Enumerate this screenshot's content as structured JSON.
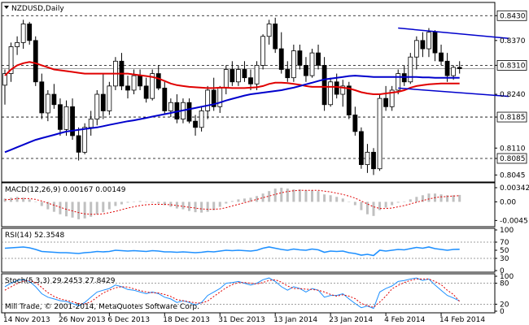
{
  "window": {
    "symbol_title": "NZDUSD,Daily",
    "copyright": "Mill Trade, © 2001-2014, MetaQuotes Software Corp."
  },
  "colors": {
    "background": "#ffffff",
    "frame": "#000000",
    "bull_candle": "#ffffff",
    "bear_candle": "#000000",
    "ma_red": "#e00000",
    "ma_blue": "#0000cc",
    "trendline": "#0000cc",
    "hline": "#000000",
    "last_price_line": "#808080",
    "macd_hist": "#c0c0c0",
    "macd_signal": "#e00000",
    "rsi_line": "#1e90ff",
    "stoch_main": "#1e90ff",
    "stoch_signal": "#e00000"
  },
  "chart_data": [
    {
      "type": "candlestick",
      "title": "NZDUSD,Daily",
      "ylim": [
        0.803,
        0.846
      ],
      "price_tick_labels": [
        "0.8430",
        "0.8370",
        "0.8310",
        "0.8240",
        "0.8185",
        "0.8110",
        "0.8085",
        "0.8045"
      ],
      "horizontal_levels": [
        0.843,
        0.831,
        0.8185,
        0.8085
      ],
      "last_price": 0.8302,
      "x_tick_labels": [
        "14 Nov 2013",
        "26 Nov 2013",
        "6 Dec 2013",
        "18 Dec 2013",
        "31 Dec 2013",
        "13 Jan 2014",
        "23 Jan 2014",
        "4 Feb 2014",
        "14 Feb 2014"
      ],
      "x_tick_bar_index": [
        0,
        9,
        17,
        26,
        35,
        44,
        53,
        62,
        71
      ],
      "candles": [
        [
          0.8262,
          0.83,
          0.8215,
          0.829
        ],
        [
          0.829,
          0.8365,
          0.827,
          0.8355
        ],
        [
          0.8355,
          0.838,
          0.8335,
          0.8365
        ],
        [
          0.8365,
          0.842,
          0.835,
          0.841
        ],
        [
          0.841,
          0.8415,
          0.836,
          0.837
        ],
        [
          0.837,
          0.838,
          0.826,
          0.827
        ],
        [
          0.827,
          0.829,
          0.818,
          0.8195
        ],
        [
          0.8195,
          0.825,
          0.8175,
          0.824
        ],
        [
          0.824,
          0.8265,
          0.8205,
          0.8215
        ],
        [
          0.8215,
          0.823,
          0.814,
          0.8155
        ],
        [
          0.8155,
          0.8225,
          0.814,
          0.821
        ],
        [
          0.821,
          0.823,
          0.813,
          0.814
        ],
        [
          0.814,
          0.816,
          0.808,
          0.81
        ],
        [
          0.81,
          0.817,
          0.8095,
          0.816
        ],
        [
          0.816,
          0.82,
          0.814,
          0.818
        ],
        [
          0.818,
          0.825,
          0.8165,
          0.824
        ],
        [
          0.824,
          0.829,
          0.818,
          0.82
        ],
        [
          0.82,
          0.827,
          0.819,
          0.826
        ],
        [
          0.826,
          0.833,
          0.825,
          0.832
        ],
        [
          0.832,
          0.834,
          0.825,
          0.826
        ],
        [
          0.826,
          0.8285,
          0.823,
          0.825
        ],
        [
          0.825,
          0.83,
          0.824,
          0.8285
        ],
        [
          0.8285,
          0.83,
          0.825,
          0.826
        ],
        [
          0.826,
          0.828,
          0.822,
          0.823
        ],
        [
          0.823,
          0.83,
          0.8225,
          0.829
        ],
        [
          0.829,
          0.831,
          0.825,
          0.8255
        ],
        [
          0.8255,
          0.827,
          0.819,
          0.82
        ],
        [
          0.82,
          0.823,
          0.8185,
          0.822
        ],
        [
          0.822,
          0.824,
          0.817,
          0.818
        ],
        [
          0.818,
          0.823,
          0.817,
          0.822
        ],
        [
          0.822,
          0.823,
          0.817,
          0.8175
        ],
        [
          0.8175,
          0.819,
          0.814,
          0.816
        ],
        [
          0.816,
          0.821,
          0.815,
          0.82
        ],
        [
          0.82,
          0.826,
          0.818,
          0.825
        ],
        [
          0.825,
          0.828,
          0.82,
          0.821
        ],
        [
          0.821,
          0.826,
          0.8195,
          0.8255
        ],
        [
          0.8255,
          0.831,
          0.824,
          0.83
        ],
        [
          0.83,
          0.832,
          0.826,
          0.827
        ],
        [
          0.827,
          0.831,
          0.826,
          0.83
        ],
        [
          0.83,
          0.832,
          0.827,
          0.828
        ],
        [
          0.828,
          0.83,
          0.825,
          0.8265
        ],
        [
          0.8265,
          0.832,
          0.825,
          0.831
        ],
        [
          0.831,
          0.8385,
          0.83,
          0.838
        ],
        [
          0.838,
          0.842,
          0.836,
          0.841
        ],
        [
          0.841,
          0.8425,
          0.834,
          0.835
        ],
        [
          0.835,
          0.839,
          0.829,
          0.83
        ],
        [
          0.83,
          0.832,
          0.827,
          0.828
        ],
        [
          0.828,
          0.836,
          0.827,
          0.8345
        ],
        [
          0.8345,
          0.836,
          0.83,
          0.831
        ],
        [
          0.831,
          0.833,
          0.827,
          0.8285
        ],
        [
          0.8285,
          0.835,
          0.828,
          0.834
        ],
        [
          0.834,
          0.836,
          0.83,
          0.831
        ],
        [
          0.831,
          0.833,
          0.82,
          0.8215
        ],
        [
          0.8215,
          0.828,
          0.821,
          0.827
        ],
        [
          0.827,
          0.829,
          0.823,
          0.824
        ],
        [
          0.824,
          0.8275,
          0.821,
          0.826
        ],
        [
          0.826,
          0.827,
          0.818,
          0.819
        ],
        [
          0.819,
          0.821,
          0.814,
          0.815
        ],
        [
          0.815,
          0.816,
          0.806,
          0.807
        ],
        [
          0.807,
          0.812,
          0.805,
          0.81
        ],
        [
          0.81,
          0.811,
          0.8045,
          0.806
        ],
        [
          0.806,
          0.824,
          0.8055,
          0.823
        ],
        [
          0.823,
          0.826,
          0.82,
          0.821
        ],
        [
          0.821,
          0.826,
          0.82,
          0.825
        ],
        [
          0.825,
          0.83,
          0.824,
          0.829
        ],
        [
          0.829,
          0.831,
          0.826,
          0.827
        ],
        [
          0.827,
          0.834,
          0.8265,
          0.833
        ],
        [
          0.833,
          0.838,
          0.83,
          0.837
        ],
        [
          0.837,
          0.839,
          0.833,
          0.835
        ],
        [
          0.835,
          0.84,
          0.833,
          0.839
        ],
        [
          0.839,
          0.8395,
          0.832,
          0.834
        ],
        [
          0.834,
          0.836,
          0.831,
          0.832
        ],
        [
          0.832,
          0.834,
          0.827,
          0.8285
        ],
        [
          0.8285,
          0.831,
          0.8275,
          0.8305
        ],
        [
          0.8305,
          0.832,
          0.829,
          0.8302
        ]
      ],
      "overlays": [
        {
          "line": "red-ma",
          "values": [
            0.8285,
            0.83,
            0.831,
            0.8315,
            0.8318,
            0.8315,
            0.831,
            0.8305,
            0.83,
            0.8298,
            0.8296,
            0.8294,
            0.8292,
            0.829,
            0.829,
            0.829,
            0.829,
            0.829,
            0.829,
            0.829,
            0.829,
            0.8288,
            0.8286,
            0.8284,
            0.8282,
            0.8278,
            0.8272,
            0.8266,
            0.8262,
            0.826,
            0.8258,
            0.8257,
            0.8256,
            0.8255,
            0.8255,
            0.8256,
            0.8256,
            0.8255,
            0.8255,
            0.8255,
            0.8256,
            0.8257,
            0.826,
            0.8265,
            0.8268,
            0.8268,
            0.8267,
            0.8265,
            0.8263,
            0.826,
            0.8258,
            0.8258,
            0.8258,
            0.8258,
            0.8258,
            0.8256,
            0.8254,
            0.825,
            0.8245,
            0.8242,
            0.824,
            0.824,
            0.8242,
            0.8244,
            0.8246,
            0.825,
            0.8256,
            0.826,
            0.8262,
            0.8264,
            0.8265,
            0.8266,
            0.8266,
            0.8266,
            0.8266
          ]
        },
        {
          "line": "blue-ma",
          "values": [
            0.81,
            0.8106,
            0.8112,
            0.8118,
            0.8124,
            0.813,
            0.8134,
            0.8138,
            0.8142,
            0.8146,
            0.815,
            0.8152,
            0.8154,
            0.8156,
            0.8158,
            0.816,
            0.8163,
            0.8166,
            0.8169,
            0.8172,
            0.8175,
            0.8177,
            0.818,
            0.8183,
            0.8186,
            0.8189,
            0.8192,
            0.8195,
            0.8198,
            0.8201,
            0.8204,
            0.8207,
            0.821,
            0.8213,
            0.8216,
            0.822,
            0.8225,
            0.8229,
            0.8233,
            0.8237,
            0.824,
            0.8242,
            0.8244,
            0.8246,
            0.8248,
            0.825,
            0.8253,
            0.8256,
            0.826,
            0.8264,
            0.8268,
            0.8272,
            0.8276,
            0.8278,
            0.828,
            0.8282,
            0.8284,
            0.8285,
            0.8284,
            0.8283,
            0.8282,
            0.8282,
            0.8282,
            0.8282,
            0.8282,
            0.8282,
            0.8282,
            0.8282,
            0.8281,
            0.8281,
            0.828,
            0.828,
            0.828,
            0.828,
            0.828
          ]
        },
        {
          "line": "upper-trendline",
          "from": [
            64,
            0.84
          ],
          "to": [
            82,
            0.8375
          ]
        },
        {
          "line": "lower-trendline",
          "from": [
            64,
            0.8255
          ],
          "to": [
            82,
            0.8235
          ]
        }
      ]
    },
    {
      "type": "bar",
      "title": "MACD(12,26,9) 0.00167 0.00149",
      "tick_labels": [
        "0.00342",
        "0.00",
        "-0.0045"
      ],
      "ylim": [
        -0.0058,
        0.0044
      ],
      "histogram": [
        0.0008,
        0.001,
        0.0012,
        0.001,
        0.0006,
        0.0,
        -0.001,
        -0.0018,
        -0.0024,
        -0.003,
        -0.0035,
        -0.0038,
        -0.0042,
        -0.004,
        -0.0036,
        -0.003,
        -0.0025,
        -0.0018,
        -0.001,
        -0.0006,
        -0.0002,
        0.0,
        0.0002,
        0.0,
        -0.0002,
        -0.0004,
        -0.0008,
        -0.0012,
        -0.0016,
        -0.0018,
        -0.0022,
        -0.0025,
        -0.0026,
        -0.0024,
        -0.002,
        -0.0012,
        -0.0004,
        0.0002,
        0.0006,
        0.0008,
        0.001,
        0.0014,
        0.002,
        0.0026,
        0.0032,
        0.0034,
        0.0032,
        0.003,
        0.003,
        0.0028,
        0.0028,
        0.0026,
        0.0018,
        0.0016,
        0.0012,
        0.0008,
        0.0,
        -0.0008,
        -0.002,
        -0.003,
        -0.0034,
        -0.002,
        -0.0014,
        -0.0008,
        -0.0002,
        0.0,
        0.0006,
        0.0012,
        0.0016,
        0.002,
        0.002,
        0.0018,
        0.0016,
        0.0016,
        0.00167
      ],
      "signal": [
        0.0005,
        0.0006,
        0.0008,
        0.0008,
        0.0008,
        0.0006,
        0.0002,
        -0.0003,
        -0.0008,
        -0.0013,
        -0.0018,
        -0.0022,
        -0.0026,
        -0.0029,
        -0.003,
        -0.003,
        -0.0029,
        -0.0026,
        -0.0023,
        -0.0019,
        -0.0015,
        -0.0012,
        -0.0009,
        -0.0007,
        -0.0006,
        -0.0006,
        -0.0006,
        -0.0007,
        -0.0009,
        -0.0011,
        -0.0013,
        -0.0015,
        -0.0017,
        -0.0018,
        -0.0018,
        -0.0017,
        -0.0014,
        -0.001,
        -0.0006,
        -0.0002,
        0.0002,
        0.0006,
        0.001,
        0.0014,
        0.0018,
        0.0022,
        0.0025,
        0.0027,
        0.0028,
        0.0028,
        0.0028,
        0.0028,
        0.0026,
        0.0024,
        0.0021,
        0.0018,
        0.0014,
        0.0009,
        0.0002,
        -0.0005,
        -0.0012,
        -0.0016,
        -0.0016,
        -0.0015,
        -0.0012,
        -0.0009,
        -0.0005,
        -0.0001,
        0.0003,
        0.0007,
        0.001,
        0.0012,
        0.0013,
        0.0014,
        0.00149
      ]
    },
    {
      "type": "line",
      "title": "RSI(14) 52.3548",
      "tick_labels": [
        "100",
        "70",
        "50",
        "30",
        "0"
      ],
      "levels": [
        70,
        30
      ],
      "ylim": [
        0,
        100
      ],
      "values": [
        55,
        56,
        57,
        58,
        56,
        52,
        47,
        46,
        45,
        44,
        44,
        43,
        42,
        44,
        45,
        47,
        46,
        47,
        50,
        49,
        48,
        49,
        48,
        47,
        49,
        48,
        46,
        46,
        45,
        46,
        45,
        44,
        45,
        47,
        46,
        48,
        50,
        49,
        50,
        49,
        48,
        50,
        55,
        58,
        55,
        52,
        50,
        53,
        51,
        50,
        53,
        51,
        45,
        48,
        47,
        48,
        44,
        42,
        38,
        40,
        37,
        50,
        48,
        50,
        52,
        51,
        54,
        57,
        55,
        58,
        54,
        52,
        50,
        52,
        52.35
      ]
    },
    {
      "type": "line",
      "title": "Stoch(5,3,3) 29.2453 27.8429",
      "tick_labels": [
        "100",
        "80",
        "20",
        "0"
      ],
      "levels": [
        80,
        20
      ],
      "ylim": [
        0,
        100
      ],
      "main": [
        70,
        80,
        88,
        90,
        85,
        70,
        50,
        40,
        35,
        30,
        28,
        22,
        15,
        25,
        40,
        55,
        60,
        65,
        75,
        70,
        62,
        60,
        55,
        50,
        55,
        50,
        40,
        35,
        25,
        30,
        25,
        18,
        25,
        45,
        55,
        65,
        80,
        82,
        85,
        80,
        75,
        80,
        90,
        95,
        85,
        70,
        60,
        70,
        65,
        55,
        65,
        60,
        40,
        45,
        45,
        50,
        35,
        22,
        10,
        15,
        8,
        55,
        65,
        72,
        85,
        88,
        92,
        95,
        88,
        92,
        75,
        60,
        45,
        38,
        29.25
      ],
      "signal": [
        60,
        70,
        79,
        86,
        88,
        82,
        68,
        53,
        42,
        35,
        31,
        27,
        22,
        21,
        27,
        40,
        52,
        60,
        67,
        70,
        69,
        64,
        59,
        55,
        53,
        52,
        48,
        42,
        33,
        30,
        27,
        24,
        23,
        29,
        42,
        55,
        67,
        76,
        82,
        82,
        80,
        78,
        82,
        88,
        90,
        83,
        72,
        65,
        65,
        63,
        62,
        60,
        55,
        48,
        43,
        47,
        43,
        36,
        22,
        16,
        11,
        26,
        43,
        64,
        74,
        82,
        88,
        92,
        92,
        92,
        85,
        76,
        60,
        48,
        27.84
      ]
    }
  ]
}
